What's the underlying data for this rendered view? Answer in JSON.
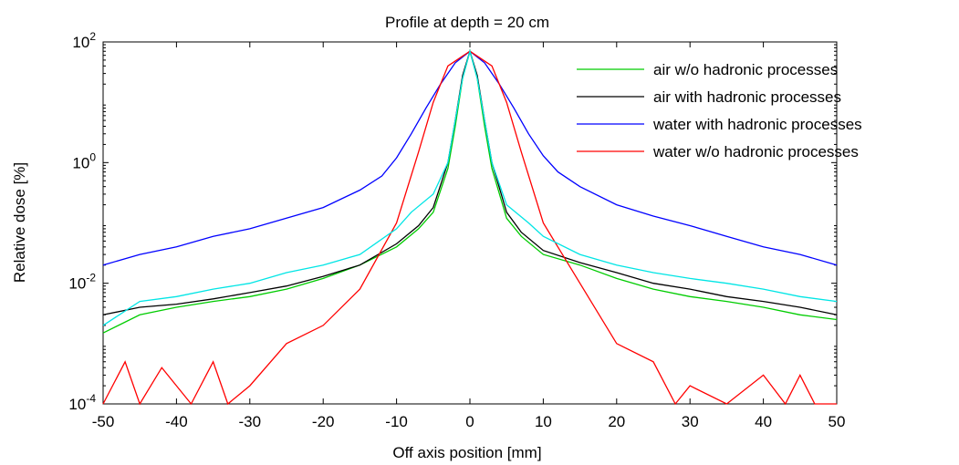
{
  "chart_data": {
    "type": "line",
    "title": "Profile at depth = 20 cm",
    "xlabel": "Off axis position [mm]",
    "ylabel": "Relative dose [%]",
    "xlim": [
      -50,
      50
    ],
    "ylim": [
      0.0001,
      100
    ],
    "yscale": "log",
    "grid": false,
    "legend_position": "top-right",
    "x_ticks": [
      "-50",
      "-40",
      "-30",
      "-20",
      "-10",
      "0",
      "10",
      "20",
      "30",
      "40",
      "50"
    ],
    "y_ticks": [
      {
        "base": "10",
        "exp": "-4",
        "value": 0.0001
      },
      {
        "base": "10",
        "exp": "-2",
        "value": 0.01
      },
      {
        "base": "10",
        "exp": "0",
        "value": 1
      },
      {
        "base": "10",
        "exp": "2",
        "value": 100
      }
    ],
    "series": [
      {
        "name": "air w/o hadronic processes",
        "color": "#00cc00",
        "in_legend": true,
        "x": [
          -50,
          -45,
          -40,
          -35,
          -30,
          -25,
          -20,
          -15,
          -10,
          -7,
          -5,
          -3,
          -2,
          -1,
          0,
          1,
          2,
          3,
          5,
          7,
          10,
          15,
          20,
          25,
          30,
          35,
          40,
          45,
          50
        ],
        "y": [
          0.0015,
          0.003,
          0.004,
          0.005,
          0.006,
          0.008,
          0.012,
          0.02,
          0.04,
          0.08,
          0.15,
          0.8,
          4,
          25,
          70,
          25,
          4,
          0.8,
          0.12,
          0.06,
          0.03,
          0.02,
          0.012,
          0.008,
          0.006,
          0.005,
          0.004,
          0.003,
          0.0025
        ]
      },
      {
        "name": "air with hadronic processes",
        "color": "#000000",
        "in_legend": true,
        "x": [
          -50,
          -45,
          -40,
          -35,
          -30,
          -25,
          -20,
          -15,
          -10,
          -7,
          -5,
          -3,
          -2,
          -1,
          0,
          1,
          2,
          3,
          5,
          7,
          10,
          15,
          20,
          25,
          30,
          35,
          40,
          45,
          50
        ],
        "y": [
          0.003,
          0.004,
          0.0045,
          0.0055,
          0.007,
          0.009,
          0.013,
          0.02,
          0.045,
          0.09,
          0.18,
          1,
          5,
          28,
          70,
          28,
          5,
          1,
          0.15,
          0.07,
          0.035,
          0.022,
          0.015,
          0.01,
          0.008,
          0.006,
          0.005,
          0.004,
          0.003
        ]
      },
      {
        "name": "water with hadronic processes",
        "color": "#0000ff",
        "in_legend": true,
        "x": [
          -50,
          -45,
          -40,
          -35,
          -30,
          -25,
          -20,
          -15,
          -12,
          -10,
          -8,
          -6,
          -4,
          -2,
          0,
          2,
          4,
          6,
          8,
          10,
          12,
          15,
          20,
          25,
          30,
          35,
          40,
          45,
          50
        ],
        "y": [
          0.02,
          0.03,
          0.04,
          0.06,
          0.08,
          0.12,
          0.18,
          0.35,
          0.6,
          1.2,
          3,
          8,
          20,
          45,
          70,
          45,
          20,
          8,
          3,
          1.3,
          0.7,
          0.4,
          0.2,
          0.13,
          0.09,
          0.06,
          0.04,
          0.03,
          0.02
        ]
      },
      {
        "name": "water w/o hadronic processes",
        "color": "#ff0000",
        "in_legend": true,
        "x": [
          -50,
          -47,
          -45,
          -42,
          -40,
          -38,
          -35,
          -33,
          -30,
          -25,
          -20,
          -15,
          -10,
          -7,
          -5,
          -3,
          0,
          3,
          5,
          7,
          10,
          15,
          20,
          25,
          28,
          30,
          35,
          40,
          43,
          45,
          47,
          50
        ],
        "y": [
          0.0001,
          0.0005,
          0.0001,
          0.0004,
          0.0002,
          0.0001,
          0.0005,
          0.0001,
          0.0002,
          0.001,
          0.002,
          0.008,
          0.1,
          1.5,
          10,
          40,
          70,
          40,
          10,
          1.5,
          0.1,
          0.01,
          0.001,
          0.0005,
          0.0001,
          0.0002,
          0.0001,
          0.0003,
          0.0001,
          0.0003,
          0.0001,
          0.0001
        ]
      },
      {
        "name": "",
        "color": "#00e5e5",
        "in_legend": false,
        "x": [
          -50,
          -45,
          -40,
          -35,
          -30,
          -25,
          -20,
          -15,
          -10,
          -8,
          -5,
          -3,
          -2,
          -1,
          0,
          1,
          2,
          3,
          5,
          8,
          10,
          15,
          20,
          25,
          30,
          35,
          40,
          45,
          50
        ],
        "y": [
          0.002,
          0.005,
          0.006,
          0.008,
          0.01,
          0.015,
          0.02,
          0.03,
          0.08,
          0.15,
          0.3,
          1,
          5,
          25,
          70,
          25,
          5,
          1,
          0.2,
          0.1,
          0.06,
          0.03,
          0.02,
          0.015,
          0.012,
          0.01,
          0.008,
          0.006,
          0.005
        ]
      }
    ]
  }
}
